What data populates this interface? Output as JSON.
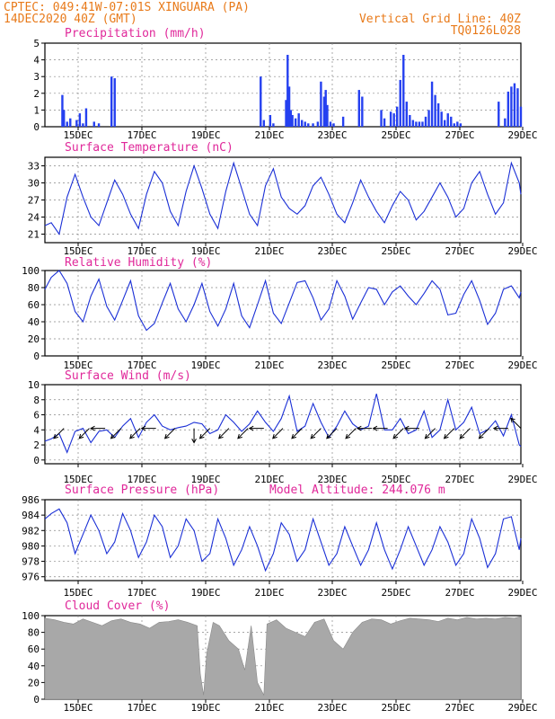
{
  "header": {
    "line1": "CPTEC:   049:41W-07:01S  XINGUARA (PA)",
    "line2": "14DEC2020 40Z (GMT)",
    "right1": "Vertical Grid Line: 40Z",
    "right2": "TQ0126L028",
    "model_altitude": "Model Altitude: 244.076 m"
  },
  "colors": {
    "header": "#e87a1a",
    "title": "#e0289a",
    "line": "#1a2fd6",
    "bar": "#2540f0",
    "cloud": "#a8a8a8",
    "grid": "#888888"
  },
  "x_ticks": [
    "15DEC",
    "17DEC",
    "19DEC",
    "21DEC",
    "23DEC",
    "25DEC",
    "27DEC",
    "29DEC"
  ],
  "chart_data": [
    {
      "type": "bar",
      "title": "Precipitation (mm/h)",
      "ylim": [
        0,
        5
      ],
      "yticks": [
        "0",
        "1",
        "2",
        "3",
        "4",
        "5"
      ],
      "xlim": [
        14.0,
        29.0
      ],
      "x": [
        14.55,
        14.6,
        14.7,
        14.8,
        15.0,
        15.1,
        15.2,
        15.3,
        15.55,
        15.7,
        16.1,
        16.2,
        20.8,
        20.9,
        21.1,
        21.2,
        21.6,
        21.65,
        21.7,
        21.75,
        21.8,
        21.9,
        22.0,
        22.1,
        22.2,
        22.3,
        22.45,
        22.6,
        22.7,
        22.8,
        22.85,
        22.9,
        23.0,
        23.1,
        23.4,
        23.9,
        24.0,
        24.6,
        24.7,
        24.9,
        25.0,
        25.1,
        25.2,
        25.3,
        25.4,
        25.5,
        25.6,
        25.7,
        25.8,
        25.9,
        26.0,
        26.1,
        26.2,
        26.3,
        26.4,
        26.5,
        26.6,
        26.7,
        26.8,
        26.9,
        27.0,
        27.1,
        28.3,
        28.5,
        28.6,
        28.7,
        28.8,
        28.9,
        29.0
      ],
      "y": [
        1.9,
        1.0,
        0.3,
        0.5,
        0.4,
        0.8,
        0.2,
        1.1,
        0.3,
        0.2,
        3.0,
        2.9,
        3.0,
        0.4,
        0.7,
        0.2,
        1.6,
        4.3,
        2.4,
        1.0,
        0.7,
        0.5,
        0.8,
        0.4,
        0.3,
        0.2,
        0.2,
        0.3,
        2.7,
        1.8,
        2.2,
        1.3,
        0.3,
        0.2,
        0.6,
        2.2,
        1.8,
        1.0,
        0.5,
        0.9,
        0.8,
        1.2,
        2.8,
        4.3,
        1.5,
        0.7,
        0.4,
        0.3,
        0.3,
        0.3,
        0.6,
        1.0,
        2.7,
        1.9,
        1.4,
        0.9,
        0.4,
        0.8,
        0.6,
        0.2,
        0.3,
        0.2,
        1.5,
        0.5,
        2.1,
        2.4,
        2.6,
        2.3,
        1.2
      ]
    },
    {
      "type": "line",
      "title": "Surface Temperature (nC)",
      "ylim": [
        19.5,
        34.5
      ],
      "yticks": [
        "21",
        "24",
        "27",
        "30",
        "33"
      ],
      "xlim": [
        14.0,
        29.0
      ],
      "x": [
        14.0,
        14.2,
        14.45,
        14.7,
        14.95,
        15.2,
        15.45,
        15.7,
        15.95,
        16.2,
        16.45,
        16.7,
        16.95,
        17.2,
        17.45,
        17.7,
        17.95,
        18.2,
        18.45,
        18.7,
        18.95,
        19.2,
        19.45,
        19.7,
        19.95,
        20.2,
        20.45,
        20.7,
        20.95,
        21.2,
        21.45,
        21.7,
        21.95,
        22.2,
        22.45,
        22.7,
        22.95,
        23.2,
        23.45,
        23.7,
        23.95,
        24.2,
        24.45,
        24.7,
        24.95,
        25.2,
        25.45,
        25.7,
        25.95,
        26.2,
        26.45,
        26.7,
        26.95,
        27.2,
        27.45,
        27.7,
        27.95,
        28.2,
        28.45,
        28.7,
        28.95,
        29.0
      ],
      "y": [
        22.5,
        23.0,
        21.0,
        27.5,
        31.5,
        27.5,
        24.0,
        22.5,
        26.5,
        30.5,
        28.0,
        24.5,
        22.0,
        28.0,
        32.0,
        30.0,
        25.0,
        22.5,
        28.5,
        33.0,
        29.0,
        24.5,
        22.0,
        28.5,
        33.5,
        29.0,
        24.5,
        22.5,
        29.5,
        32.5,
        27.5,
        25.5,
        24.5,
        26.0,
        29.5,
        31.0,
        28.0,
        24.5,
        23.0,
        26.5,
        30.5,
        27.5,
        25.0,
        23.0,
        26.0,
        28.5,
        27.0,
        23.5,
        25.0,
        27.5,
        30.0,
        27.5,
        24.0,
        25.5,
        30.0,
        32.0,
        28.0,
        24.5,
        26.5,
        33.5,
        30.0,
        28.0
      ]
    },
    {
      "type": "line",
      "title": "Relative Humidity (%)",
      "ylim": [
        0,
        100
      ],
      "yticks": [
        "0",
        "20",
        "40",
        "60",
        "80",
        "100"
      ],
      "xlim": [
        14.0,
        29.0
      ],
      "x": [
        14.0,
        14.2,
        14.45,
        14.7,
        14.95,
        15.2,
        15.45,
        15.7,
        15.95,
        16.2,
        16.45,
        16.7,
        16.95,
        17.2,
        17.45,
        17.7,
        17.95,
        18.2,
        18.45,
        18.7,
        18.95,
        19.2,
        19.45,
        19.7,
        19.95,
        20.2,
        20.45,
        20.7,
        20.95,
        21.2,
        21.45,
        21.7,
        21.95,
        22.2,
        22.45,
        22.7,
        22.95,
        23.2,
        23.45,
        23.7,
        23.95,
        24.2,
        24.45,
        24.7,
        24.95,
        25.2,
        25.45,
        25.7,
        25.95,
        26.2,
        26.45,
        26.7,
        26.95,
        27.2,
        27.45,
        27.7,
        27.95,
        28.2,
        28.45,
        28.7,
        28.95,
        29.0
      ],
      "y": [
        78.0,
        92.0,
        100.0,
        85.0,
        52.0,
        40.0,
        70.0,
        90.0,
        58.0,
        42.0,
        65.0,
        88.0,
        47.0,
        30.0,
        38.0,
        62.0,
        85.0,
        55.0,
        40.0,
        60.0,
        85.0,
        52.0,
        35.0,
        55.0,
        85.0,
        47.0,
        33.0,
        60.0,
        88.0,
        50.0,
        38.0,
        62.0,
        86.0,
        88.0,
        68.0,
        42.0,
        55.0,
        88.0,
        70.0,
        43.0,
        62.0,
        80.0,
        78.0,
        60.0,
        75.0,
        82.0,
        70.0,
        60.0,
        73.0,
        88.0,
        78.0,
        48.0,
        50.0,
        72.0,
        88.0,
        65.0,
        37.0,
        50.0,
        78.0,
        82.0,
        68.0,
        75.0
      ]
    },
    {
      "type": "line",
      "title": "Surface Wind (m/s)",
      "ylim": [
        -0.5,
        10.0
      ],
      "yticks": [
        "0",
        "2",
        "4",
        "6",
        "8",
        "10"
      ],
      "xlim": [
        14.0,
        29.0
      ],
      "x": [
        14.0,
        14.2,
        14.45,
        14.7,
        14.95,
        15.2,
        15.45,
        15.7,
        15.95,
        16.2,
        16.45,
        16.7,
        16.95,
        17.2,
        17.45,
        17.7,
        17.95,
        18.2,
        18.45,
        18.7,
        18.95,
        19.2,
        19.45,
        19.7,
        19.95,
        20.2,
        20.45,
        20.7,
        20.95,
        21.2,
        21.45,
        21.7,
        21.95,
        22.2,
        22.45,
        22.7,
        22.95,
        23.2,
        23.45,
        23.7,
        23.95,
        24.2,
        24.45,
        24.7,
        24.95,
        25.2,
        25.45,
        25.7,
        25.95,
        26.2,
        26.45,
        26.7,
        26.95,
        27.2,
        27.45,
        27.7,
        27.95,
        28.2,
        28.45,
        28.7,
        28.95,
        29.0
      ],
      "y": [
        2.5,
        2.8,
        3.5,
        1.0,
        3.8,
        4.2,
        2.3,
        3.8,
        4.0,
        3.0,
        4.5,
        5.5,
        3.0,
        5.0,
        6.0,
        4.5,
        4.0,
        4.3,
        4.5,
        5.0,
        4.8,
        3.5,
        4.0,
        6.0,
        5.0,
        3.8,
        4.8,
        6.5,
        5.0,
        3.8,
        5.5,
        8.5,
        3.8,
        4.5,
        7.5,
        5.0,
        3.0,
        4.5,
        6.5,
        4.8,
        4.0,
        4.5,
        8.8,
        4.0,
        4.0,
        5.5,
        3.5,
        4.0,
        6.5,
        3.0,
        4.0,
        8.0,
        4.0,
        5.0,
        7.0,
        3.5,
        4.0,
        5.2,
        3.2,
        6.0,
        2.0,
        1.8
      ],
      "arrows": [
        {
          "x": 14.6,
          "dir": "sw"
        },
        {
          "x": 15.4,
          "dir": "sw"
        },
        {
          "x": 15.9,
          "dir": "w"
        },
        {
          "x": 16.4,
          "dir": "sw"
        },
        {
          "x": 17.0,
          "dir": "sw"
        },
        {
          "x": 17.5,
          "dir": "w"
        },
        {
          "x": 18.1,
          "dir": "sw"
        },
        {
          "x": 18.7,
          "dir": "s"
        },
        {
          "x": 19.2,
          "dir": "sw"
        },
        {
          "x": 19.8,
          "dir": "sw"
        },
        {
          "x": 20.4,
          "dir": "sw"
        },
        {
          "x": 20.9,
          "dir": "w"
        },
        {
          "x": 21.5,
          "dir": "sw"
        },
        {
          "x": 22.1,
          "dir": "sw"
        },
        {
          "x": 22.7,
          "dir": "sw"
        },
        {
          "x": 23.2,
          "dir": "sw"
        },
        {
          "x": 23.8,
          "dir": "sw"
        },
        {
          "x": 24.3,
          "dir": "w"
        },
        {
          "x": 24.8,
          "dir": "w"
        },
        {
          "x": 25.3,
          "dir": "sw"
        },
        {
          "x": 25.8,
          "dir": "w"
        },
        {
          "x": 26.3,
          "dir": "sw"
        },
        {
          "x": 26.9,
          "dir": "sw"
        },
        {
          "x": 27.4,
          "dir": "sw"
        },
        {
          "x": 28.0,
          "dir": "sw"
        },
        {
          "x": 28.6,
          "dir": "w"
        },
        {
          "x": 29.0,
          "dir": "nw"
        }
      ]
    },
    {
      "type": "line",
      "title": "Surface Pressure (hPa)",
      "ylim": [
        975.5,
        986.0
      ],
      "yticks": [
        "976",
        "978",
        "980",
        "982",
        "984",
        "986"
      ],
      "xlim": [
        14.0,
        29.0
      ],
      "x": [
        14.0,
        14.2,
        14.45,
        14.7,
        14.95,
        15.2,
        15.45,
        15.7,
        15.95,
        16.2,
        16.45,
        16.7,
        16.95,
        17.2,
        17.45,
        17.7,
        17.95,
        18.2,
        18.45,
        18.7,
        18.95,
        19.2,
        19.45,
        19.7,
        19.95,
        20.2,
        20.45,
        20.7,
        20.95,
        21.2,
        21.45,
        21.7,
        21.95,
        22.2,
        22.45,
        22.7,
        22.95,
        23.2,
        23.45,
        23.7,
        23.95,
        24.2,
        24.45,
        24.7,
        24.95,
        25.2,
        25.45,
        25.7,
        25.95,
        26.2,
        26.45,
        26.7,
        26.95,
        27.2,
        27.45,
        27.7,
        27.95,
        28.2,
        28.45,
        28.7,
        28.95,
        29.0
      ],
      "y": [
        983.5,
        984.2,
        984.8,
        983.0,
        979.0,
        981.5,
        984.0,
        982.0,
        979.0,
        980.5,
        984.2,
        982.0,
        978.5,
        980.5,
        984.0,
        982.5,
        978.5,
        980.0,
        983.5,
        982.0,
        978.0,
        979.0,
        983.5,
        981.0,
        977.5,
        979.5,
        982.5,
        980.0,
        976.8,
        979.0,
        983.0,
        981.5,
        978.0,
        979.5,
        983.5,
        980.5,
        977.5,
        979.0,
        982.5,
        980.0,
        977.5,
        979.5,
        983.0,
        979.5,
        977.0,
        979.5,
        982.5,
        980.0,
        977.5,
        979.5,
        982.5,
        980.5,
        977.5,
        979.0,
        983.5,
        981.0,
        977.2,
        979.0,
        983.5,
        983.8,
        979.5,
        981.0
      ]
    },
    {
      "type": "area",
      "title": "Cloud Cover (%)",
      "ylim": [
        0,
        100
      ],
      "yticks": [
        "0",
        "20",
        "40",
        "60",
        "80",
        "100"
      ],
      "xlim": [
        14.0,
        29.0
      ],
      "x": [
        14.0,
        14.3,
        14.6,
        14.9,
        15.2,
        15.5,
        15.8,
        16.1,
        16.4,
        16.7,
        17.0,
        17.3,
        17.6,
        17.9,
        18.2,
        18.5,
        18.8,
        18.9,
        19.0,
        19.1,
        19.3,
        19.5,
        19.8,
        20.1,
        20.3,
        20.5,
        20.7,
        20.9,
        21.0,
        21.3,
        21.6,
        21.9,
        22.2,
        22.5,
        22.8,
        23.1,
        23.4,
        23.7,
        24.0,
        24.3,
        24.6,
        24.9,
        25.2,
        25.5,
        25.8,
        26.1,
        26.4,
        26.7,
        27.0,
        27.3,
        27.6,
        27.9,
        28.2,
        28.5,
        28.8,
        29.0
      ],
      "y": [
        97,
        95,
        92,
        90,
        96,
        92,
        88,
        94,
        96,
        92,
        90,
        85,
        92,
        93,
        95,
        92,
        88,
        30,
        5,
        55,
        92,
        88,
        70,
        60,
        35,
        88,
        20,
        5,
        90,
        95,
        85,
        80,
        75,
        92,
        96,
        70,
        60,
        80,
        92,
        96,
        95,
        90,
        94,
        97,
        96,
        95,
        93,
        97,
        95,
        98,
        96,
        97,
        96,
        98,
        97,
        99
      ]
    }
  ]
}
